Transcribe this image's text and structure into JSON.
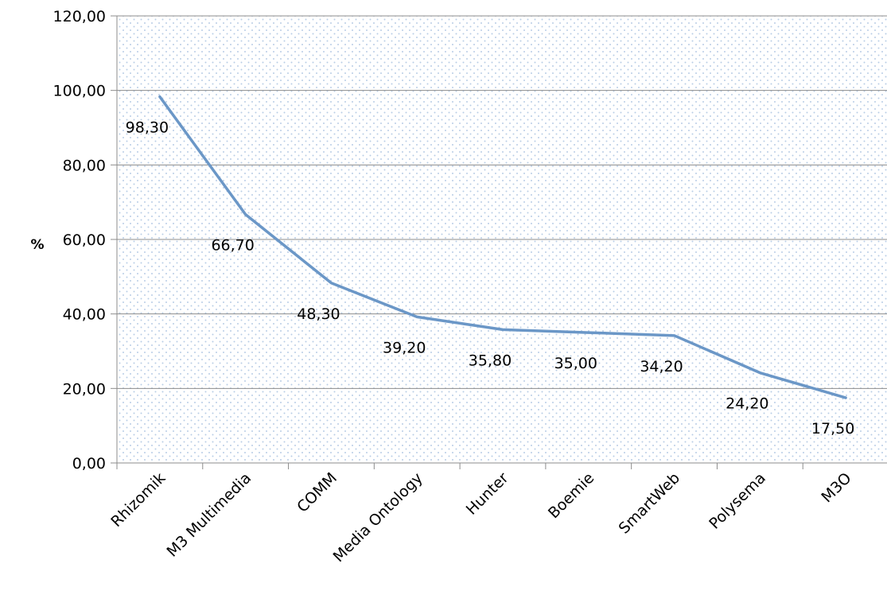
{
  "chart_data": {
    "type": "line",
    "title": "",
    "xlabel": "",
    "ylabel": "%",
    "ylim": [
      0,
      120
    ],
    "y_ticks": [
      "0,00",
      "20,00",
      "40,00",
      "60,00",
      "80,00",
      "100,00",
      "120,00"
    ],
    "grid": true,
    "legend": "none",
    "categories": [
      "Rhizomik",
      "M3 Multimedia",
      "COMM",
      "Media Ontology",
      "Hunter",
      "Boemie",
      "SmartWeb",
      "Polysema",
      "M3O"
    ],
    "series": [
      {
        "values": [
          98.3,
          66.7,
          48.3,
          39.2,
          35.8,
          35.0,
          34.2,
          24.2,
          17.5
        ],
        "labels": [
          "98,30",
          "66,70",
          "48,30",
          "39,20",
          "35,80",
          "35,00",
          "34,20",
          "24,20",
          "17,50"
        ]
      }
    ],
    "colors": {
      "line": "#6b97c7",
      "grid": "#8c8c8c",
      "axis": "#8c8c8c",
      "plot_background": "#ffffff",
      "dot_pattern": "#b9cde6"
    }
  }
}
